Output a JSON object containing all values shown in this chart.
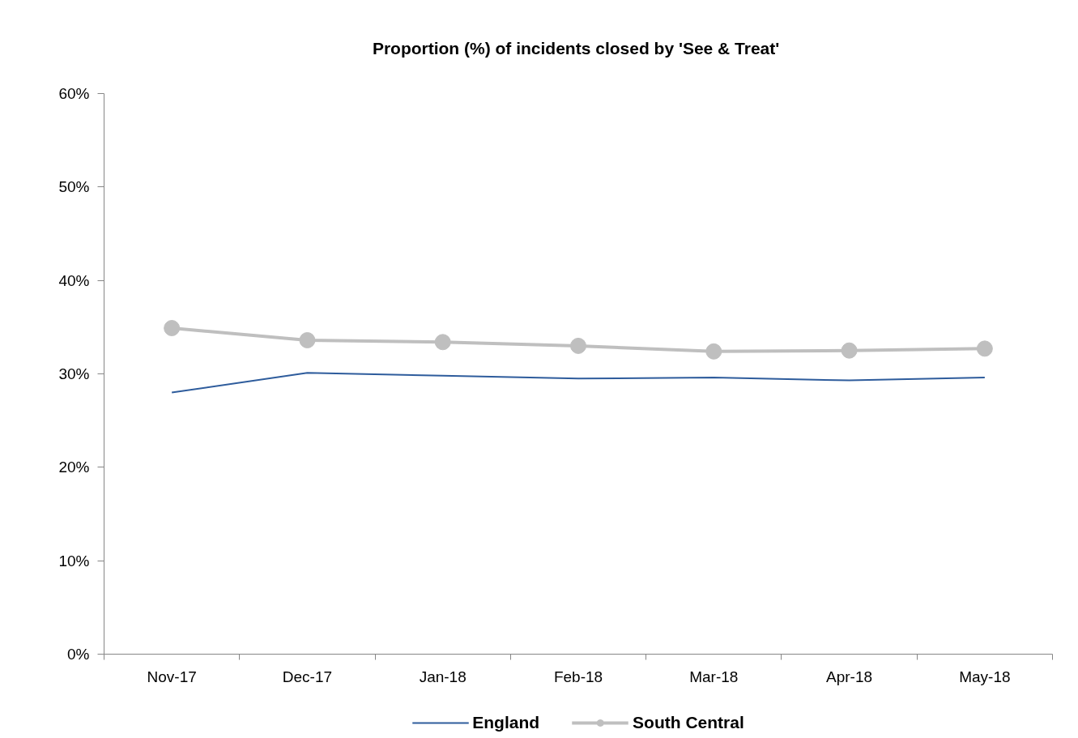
{
  "chart_data": {
    "type": "line",
    "title": "Proportion (%)  of incidents closed by 'See & Treat'",
    "categories": [
      "Nov-17",
      "Dec-17",
      "Jan-18",
      "Feb-18",
      "Mar-18",
      "Apr-18",
      "May-18"
    ],
    "series": [
      {
        "name": "England",
        "color": "#2e5c9c",
        "values": [
          28.0,
          30.1,
          29.8,
          29.5,
          29.6,
          29.3,
          29.6
        ]
      },
      {
        "name": "South Central",
        "color": "#bfbfbf",
        "marker": "circle",
        "values": [
          34.9,
          33.6,
          33.4,
          33.0,
          32.4,
          32.5,
          32.7
        ]
      }
    ],
    "ylim": [
      0,
      60
    ],
    "yticks": [
      {
        "value": 0,
        "label": "0%"
      },
      {
        "value": 10,
        "label": "10%"
      },
      {
        "value": 20,
        "label": "20%"
      },
      {
        "value": 30,
        "label": "30%"
      },
      {
        "value": 40,
        "label": "40%"
      },
      {
        "value": 50,
        "label": "50%"
      },
      {
        "value": 60,
        "label": "60%"
      }
    ],
    "grid": false,
    "legend": "bottom"
  }
}
